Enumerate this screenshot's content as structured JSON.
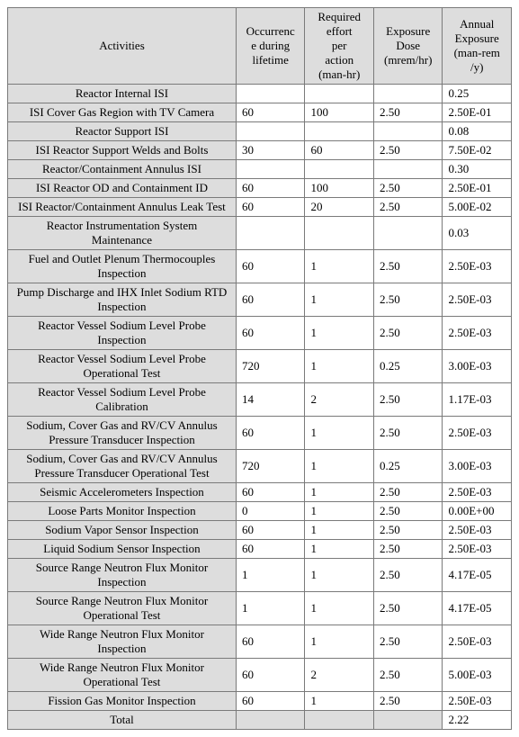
{
  "headers": {
    "activities": "Activities",
    "occurrence": "Occurrenc\ne during\nlifetime",
    "effort": "Required\neffort\nper\naction\n(man-hr)",
    "dose": "Exposure\nDose\n(mrem/hr)",
    "annual": "Annual\nExposure\n(man-rem\n/y)"
  },
  "rows": [
    {
      "label": "Reactor Internal ISI",
      "occ": "",
      "eff": "",
      "dose": "",
      "ann": "0.25"
    },
    {
      "label": "ISI Cover Gas Region with TV Camera",
      "occ": "60",
      "eff": "100",
      "dose": "2.50",
      "ann": "2.50E-01"
    },
    {
      "label": "Reactor Support ISI",
      "occ": "",
      "eff": "",
      "dose": "",
      "ann": "0.08"
    },
    {
      "label": "ISI Reactor Support Welds and Bolts",
      "occ": "30",
      "eff": "60",
      "dose": "2.50",
      "ann": "7.50E-02"
    },
    {
      "label": "Reactor/Containment Annulus ISI",
      "occ": "",
      "eff": "",
      "dose": "",
      "ann": "0.30"
    },
    {
      "label": "ISI Reactor OD and Containment ID",
      "occ": "60",
      "eff": "100",
      "dose": "2.50",
      "ann": "2.50E-01"
    },
    {
      "label": "ISI Reactor/Containment Annulus Leak Test",
      "occ": "60",
      "eff": "20",
      "dose": "2.50",
      "ann": "5.00E-02"
    },
    {
      "label": "Reactor Instrumentation System\nMaintenance",
      "occ": "",
      "eff": "",
      "dose": "",
      "ann": "0.03"
    },
    {
      "label": "Fuel and Outlet Plenum Thermocouples\nInspection",
      "occ": "60",
      "eff": "1",
      "dose": "2.50",
      "ann": "2.50E-03"
    },
    {
      "label": "Pump Discharge and IHX Inlet Sodium RTD\nInspection",
      "occ": "60",
      "eff": "1",
      "dose": "2.50",
      "ann": "2.50E-03"
    },
    {
      "label": "Reactor Vessel Sodium Level Probe\nInspection",
      "occ": "60",
      "eff": "1",
      "dose": "2.50",
      "ann": "2.50E-03"
    },
    {
      "label": "Reactor Vessel Sodium Level Probe\nOperational Test",
      "occ": "720",
      "eff": "1",
      "dose": "0.25",
      "ann": "3.00E-03"
    },
    {
      "label": "Reactor Vessel Sodium Level Probe\nCalibration",
      "occ": "14",
      "eff": "2",
      "dose": "2.50",
      "ann": "1.17E-03"
    },
    {
      "label": "Sodium, Cover Gas and RV/CV Annulus\nPressure Transducer Inspection",
      "occ": "60",
      "eff": "1",
      "dose": "2.50",
      "ann": "2.50E-03"
    },
    {
      "label": "Sodium, Cover Gas and RV/CV Annulus\nPressure Transducer Operational Test",
      "occ": "720",
      "eff": "1",
      "dose": "0.25",
      "ann": "3.00E-03"
    },
    {
      "label": "Seismic Accelerometers Inspection",
      "occ": "60",
      "eff": "1",
      "dose": "2.50",
      "ann": "2.50E-03"
    },
    {
      "label": "Loose Parts Monitor Inspection",
      "occ": "0",
      "eff": "1",
      "dose": "2.50",
      "ann": "0.00E+00"
    },
    {
      "label": "Sodium Vapor Sensor Inspection",
      "occ": "60",
      "eff": "1",
      "dose": "2.50",
      "ann": "2.50E-03"
    },
    {
      "label": "Liquid Sodium Sensor Inspection",
      "occ": "60",
      "eff": "1",
      "dose": "2.50",
      "ann": "2.50E-03"
    },
    {
      "label": "Source Range Neutron Flux Monitor\nInspection",
      "occ": "1",
      "eff": "1",
      "dose": "2.50",
      "ann": "4.17E-05"
    },
    {
      "label": "Source Range Neutron Flux Monitor\nOperational Test",
      "occ": "1",
      "eff": "1",
      "dose": "2.50",
      "ann": "4.17E-05"
    },
    {
      "label": "Wide Range Neutron Flux Monitor\nInspection",
      "occ": "60",
      "eff": "1",
      "dose": "2.50",
      "ann": "2.50E-03"
    },
    {
      "label": "Wide Range Neutron Flux Monitor\nOperational Test",
      "occ": "60",
      "eff": "2",
      "dose": "2.50",
      "ann": "5.00E-03"
    },
    {
      "label": "Fission Gas Monitor Inspection",
      "occ": "60",
      "eff": "1",
      "dose": "2.50",
      "ann": "2.50E-03"
    }
  ],
  "total": {
    "label": "Total",
    "ann": "2.22"
  }
}
